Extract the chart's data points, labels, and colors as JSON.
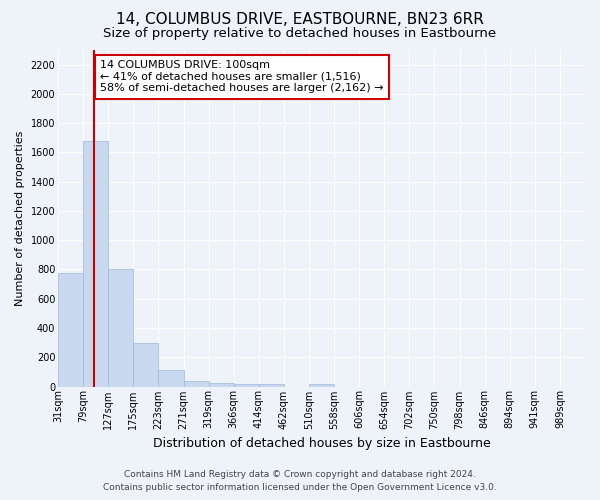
{
  "title": "14, COLUMBUS DRIVE, EASTBOURNE, BN23 6RR",
  "subtitle": "Size of property relative to detached houses in Eastbourne",
  "xlabel": "Distribution of detached houses by size in Eastbourne",
  "ylabel": "Number of detached properties",
  "footer_line1": "Contains HM Land Registry data © Crown copyright and database right 2024.",
  "footer_line2": "Contains public sector information licensed under the Open Government Licence v3.0.",
  "annotation_line1": "14 COLUMBUS DRIVE: 100sqm",
  "annotation_line2": "← 41% of detached houses are smaller (1,516)",
  "annotation_line3": "58% of semi-detached houses are larger (2,162) →",
  "bar_color": "#c8d8ee",
  "bar_edge_color": "#a0b8d8",
  "property_line_color": "#cc0000",
  "property_bar_index": 1,
  "categories": [
    "31sqm",
    "79sqm",
    "127sqm",
    "175sqm",
    "223sqm",
    "271sqm",
    "319sqm",
    "366sqm",
    "414sqm",
    "462sqm",
    "510sqm",
    "558sqm",
    "606sqm",
    "654sqm",
    "702sqm",
    "750sqm",
    "798sqm",
    "846sqm",
    "894sqm",
    "941sqm",
    "989sqm"
  ],
  "values": [
    775,
    1680,
    800,
    300,
    115,
    38,
    25,
    18,
    15,
    0,
    20,
    0,
    0,
    0,
    0,
    0,
    0,
    0,
    0,
    0,
    0
  ],
  "ylim": [
    0,
    2300
  ],
  "yticks": [
    0,
    200,
    400,
    600,
    800,
    1000,
    1200,
    1400,
    1600,
    1800,
    2000,
    2200
  ],
  "background_color": "#eef2f9",
  "grid_color": "#ffffff",
  "title_fontsize": 11,
  "subtitle_fontsize": 9.5,
  "xlabel_fontsize": 9,
  "ylabel_fontsize": 8,
  "tick_fontsize": 7,
  "annotation_fontsize": 8,
  "footer_fontsize": 6.5
}
